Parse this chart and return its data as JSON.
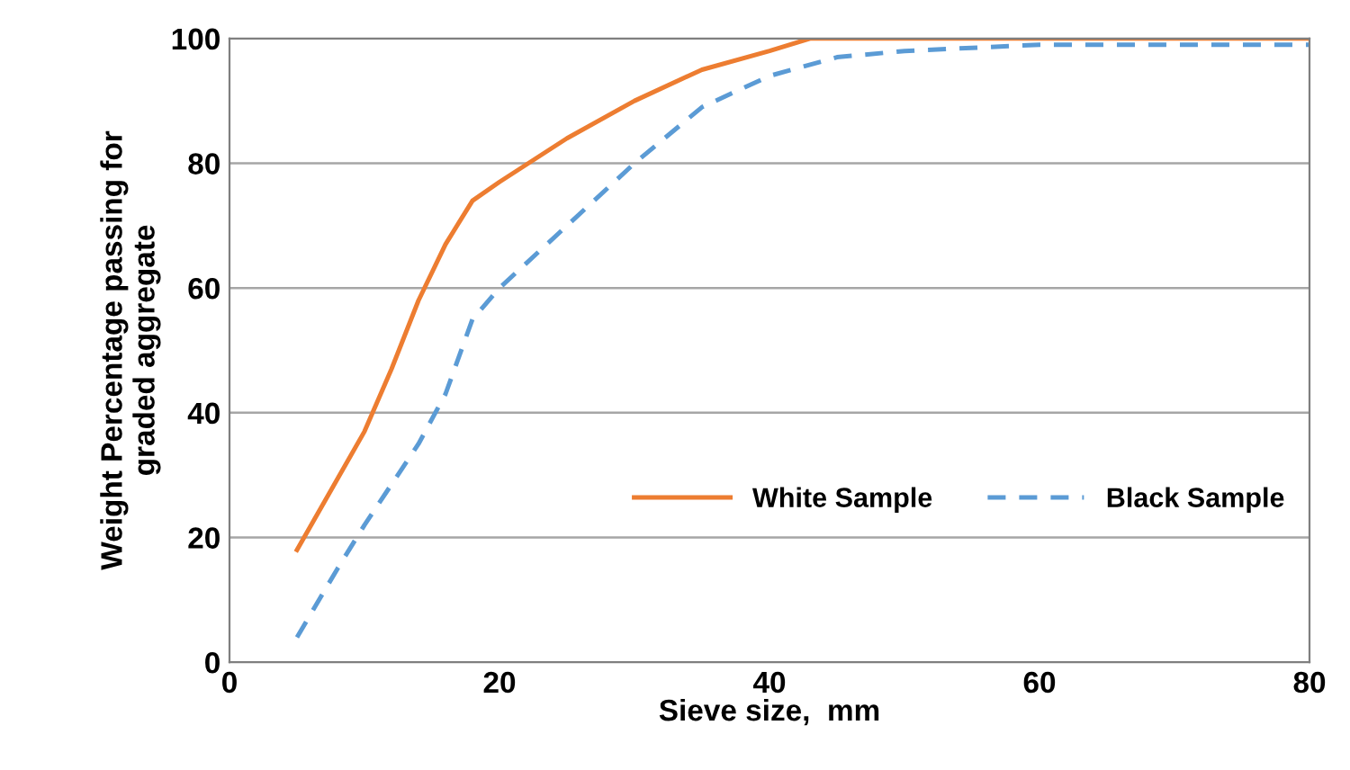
{
  "chart_data": {
    "type": "line",
    "xlabel": "Sieve size,  mm",
    "ylabel": "Weight Percentage passing for\ngraded aggregate",
    "xlim": [
      0,
      80
    ],
    "xticks": [
      0,
      20,
      40,
      60,
      80
    ],
    "ylim": [
      0,
      100
    ],
    "yticks": [
      0,
      20,
      40,
      60,
      80,
      100
    ],
    "grid": "y",
    "legend": "lower right",
    "marker": "none",
    "series": [
      {
        "name": "White Sample",
        "color": "#ed7d31",
        "line_style": "solid",
        "x": [
          5,
          10,
          12,
          14,
          16,
          18,
          20,
          25,
          30,
          35,
          40,
          43,
          50,
          60,
          80
        ],
        "values": [
          18,
          37,
          47,
          58,
          67,
          74,
          77,
          84,
          90,
          95,
          98,
          100,
          100,
          100,
          100
        ]
      },
      {
        "name": "Black Sample",
        "color": "#5b9bd5",
        "line_style": "dashed",
        "x": [
          5,
          8,
          10,
          14,
          16,
          18,
          20,
          25,
          30,
          35,
          40,
          45,
          50,
          60,
          80
        ],
        "values": [
          4,
          15,
          22,
          35,
          43,
          55,
          60,
          70,
          80,
          89,
          94,
          97,
          98,
          99,
          99
        ]
      }
    ]
  }
}
